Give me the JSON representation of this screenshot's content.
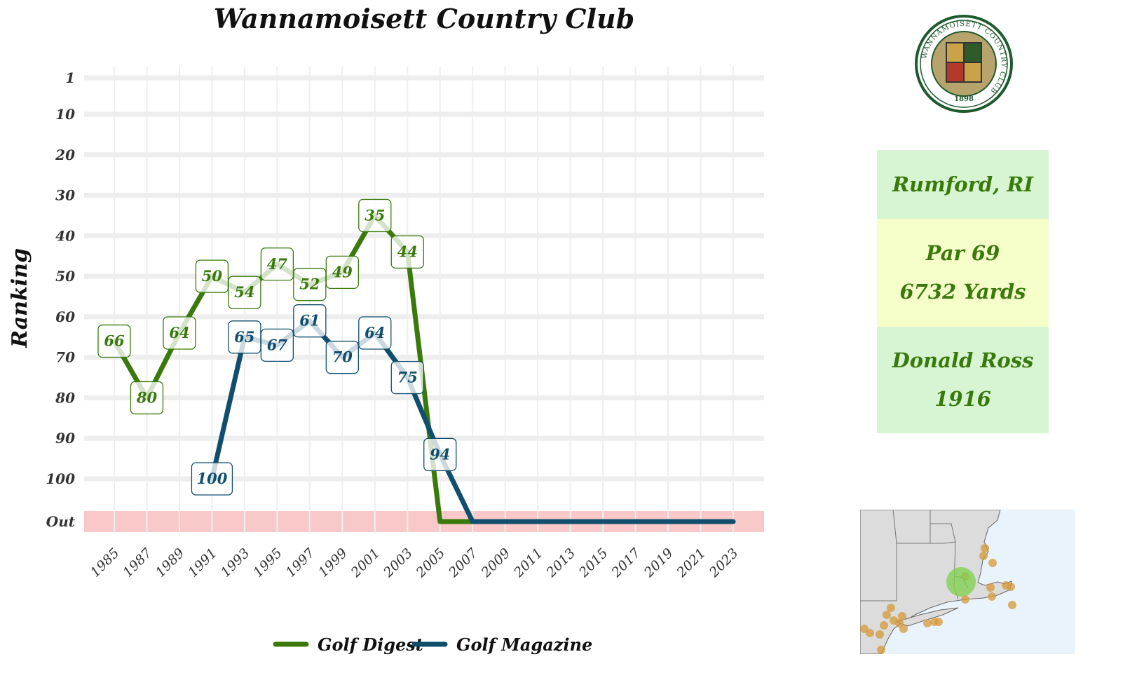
{
  "chart_data": {
    "type": "line",
    "title": "Wannamoisett Country Club",
    "ylabel": "Ranking",
    "xlabel": "",
    "x_ticks": [
      1985,
      1987,
      1989,
      1991,
      1993,
      1995,
      1997,
      1999,
      2001,
      2003,
      2005,
      2007,
      2009,
      2011,
      2013,
      2015,
      2017,
      2019,
      2021,
      2023
    ],
    "y_ticks": [
      "1",
      "10",
      "20",
      "30",
      "40",
      "50",
      "60",
      "70",
      "80",
      "90",
      "100",
      "Out"
    ],
    "y_reversed": true,
    "out_band_color": "#f9c9c9",
    "grid": true,
    "legend_position": "bottom",
    "series": [
      {
        "name": "Golf Digest",
        "color": "#3a7a0c",
        "points": [
          {
            "x": 1985,
            "y": 66,
            "label": "66"
          },
          {
            "x": 1987,
            "y": 80,
            "label": "80"
          },
          {
            "x": 1989,
            "y": 64,
            "label": "64"
          },
          {
            "x": 1991,
            "y": 50,
            "label": "50"
          },
          {
            "x": 1993,
            "y": 54,
            "label": "54"
          },
          {
            "x": 1995,
            "y": 47,
            "label": "47"
          },
          {
            "x": 1997,
            "y": 52,
            "label": "52"
          },
          {
            "x": 1999,
            "y": 49,
            "label": "49"
          },
          {
            "x": 2001,
            "y": 35,
            "label": "35"
          },
          {
            "x": 2003,
            "y": 44,
            "label": "44"
          },
          {
            "x": 2005,
            "y": "Out"
          },
          {
            "x": 2007,
            "y": "Out"
          }
        ]
      },
      {
        "name": "Golf Magazine",
        "color": "#114e6e",
        "points": [
          {
            "x": 1991,
            "y": 100,
            "label": "100"
          },
          {
            "x": 1993,
            "y": 65,
            "label": "65"
          },
          {
            "x": 1995,
            "y": 67,
            "label": "67"
          },
          {
            "x": 1997,
            "y": 61,
            "label": "61"
          },
          {
            "x": 1999,
            "y": 70,
            "label": "70"
          },
          {
            "x": 2001,
            "y": 64,
            "label": "64"
          },
          {
            "x": 2003,
            "y": 75,
            "label": "75"
          },
          {
            "x": 2005,
            "y": 94,
            "label": "94"
          },
          {
            "x": 2007,
            "y": "Out"
          },
          {
            "x": 2009,
            "y": "Out"
          },
          {
            "x": 2011,
            "y": "Out"
          },
          {
            "x": 2013,
            "y": "Out"
          },
          {
            "x": 2015,
            "y": "Out"
          },
          {
            "x": 2017,
            "y": "Out"
          },
          {
            "x": 2019,
            "y": "Out"
          },
          {
            "x": 2021,
            "y": "Out"
          },
          {
            "x": 2023,
            "y": "Out"
          }
        ]
      }
    ]
  },
  "info": {
    "location": "Rumford, RI",
    "par": "Par 69",
    "yards": "6732 Yards",
    "designer": "Donald Ross",
    "year_built": "1916"
  },
  "logo": {
    "ring_text_top": "WANNAMOISETT COUNTRY CLUB",
    "year": "1898",
    "colors": {
      "ring": "#1f5a2e",
      "gold": "#c9a24a",
      "red": "#b33a2a"
    }
  },
  "map": {
    "water_color": "#e9f3fb",
    "land_color": "#dcdcdc",
    "other_clubs_color": "#d69a3a",
    "highlight_color": "#7cd04a"
  }
}
